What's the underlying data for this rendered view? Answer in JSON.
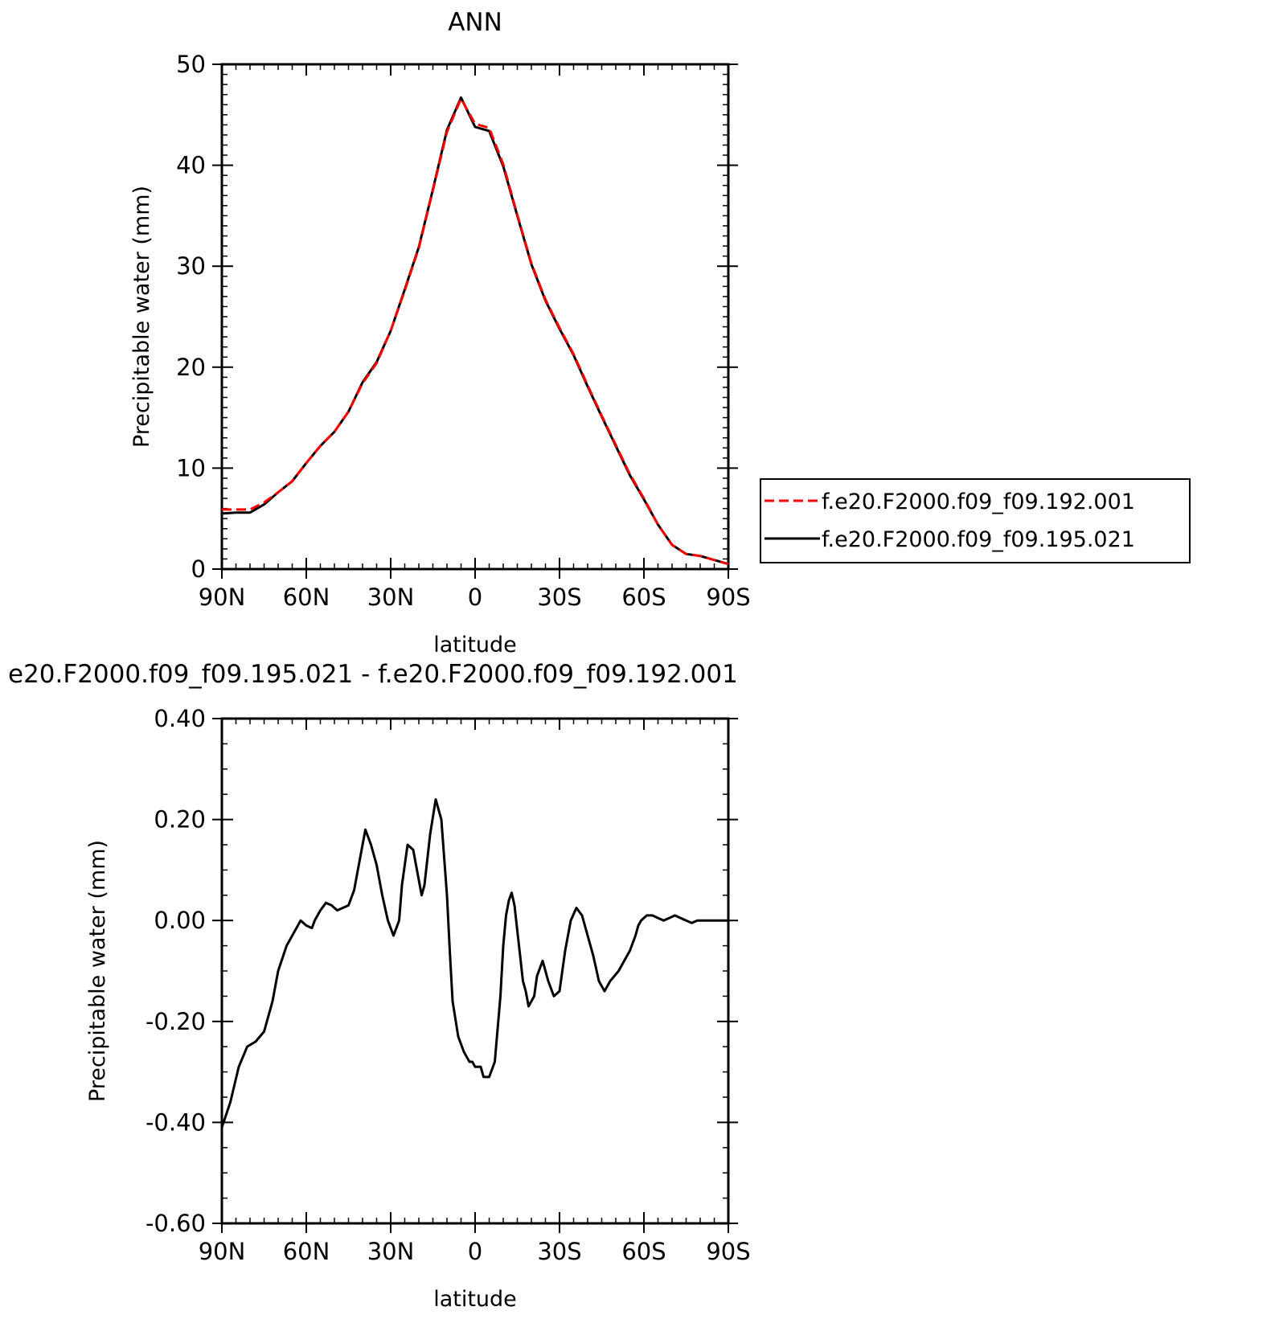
{
  "chart_data": [
    {
      "type": "line",
      "title": "ANN",
      "xlabel": "latitude",
      "ylabel": "Precipitable water (mm)",
      "xlim": [
        90,
        -90
      ],
      "ylim": [
        0,
        50
      ],
      "xticks": [
        {
          "value": 90,
          "label": "90N"
        },
        {
          "value": 60,
          "label": "60N"
        },
        {
          "value": 30,
          "label": "30N"
        },
        {
          "value": 0,
          "label": "0"
        },
        {
          "value": -30,
          "label": "30S"
        },
        {
          "value": -60,
          "label": "60S"
        },
        {
          "value": -90,
          "label": "90S"
        }
      ],
      "yticks": [
        {
          "value": 0,
          "label": "0"
        },
        {
          "value": 10,
          "label": "10"
        },
        {
          "value": 20,
          "label": "20"
        },
        {
          "value": 30,
          "label": "30"
        },
        {
          "value": 40,
          "label": "40"
        },
        {
          "value": 50,
          "label": "50"
        }
      ],
      "x": [
        90,
        85,
        80,
        75,
        70,
        65,
        60,
        55,
        50,
        45,
        40,
        35,
        30,
        25,
        20,
        15,
        10,
        5,
        0,
        -5,
        -10,
        -15,
        -20,
        -25,
        -30,
        -35,
        -40,
        -45,
        -50,
        -55,
        -60,
        -65,
        -70,
        -75,
        -80,
        -85,
        -90
      ],
      "legend_position": "right",
      "series": [
        {
          "name": "f.e20.F2000.f09_f09.192.001",
          "color": "#ff0000",
          "dash": "dashed",
          "values": [
            5.9,
            5.9,
            5.9,
            6.6,
            7.6,
            8.7,
            10.5,
            12.2,
            13.6,
            15.6,
            18.4,
            20.4,
            23.6,
            27.6,
            31.8,
            37.5,
            43.3,
            46.6,
            44.1,
            43.7,
            40.1,
            35.1,
            30.3,
            26.7,
            23.9,
            21.3,
            18.2,
            15.2,
            12.3,
            9.4,
            7.0,
            4.4,
            2.4,
            1.5,
            1.3,
            0.9,
            0.5
          ]
        },
        {
          "name": "f.e20.F2000.f09_f09.195.021",
          "color": "#000000",
          "dash": "solid",
          "values": [
            5.5,
            5.6,
            5.6,
            6.4,
            7.6,
            8.7,
            10.5,
            12.2,
            13.6,
            15.6,
            18.5,
            20.5,
            23.6,
            27.7,
            31.9,
            37.6,
            43.5,
            46.7,
            43.8,
            43.4,
            39.9,
            35.0,
            30.2,
            26.6,
            23.8,
            21.2,
            18.1,
            15.1,
            12.2,
            9.3,
            6.9,
            4.4,
            2.4,
            1.5,
            1.3,
            0.9,
            0.5
          ]
        }
      ]
    },
    {
      "type": "line",
      "title": "e20.F2000.f09_f09.195.021 - f.e20.F2000.f09_f09.192.001",
      "xlabel": "latitude",
      "ylabel": "Precipitable water (mm)",
      "xlim": [
        90,
        -90
      ],
      "ylim": [
        -0.6,
        0.4
      ],
      "xticks": [
        {
          "value": 90,
          "label": "90N"
        },
        {
          "value": 60,
          "label": "60N"
        },
        {
          "value": 30,
          "label": "30N"
        },
        {
          "value": 0,
          "label": "0"
        },
        {
          "value": -30,
          "label": "30S"
        },
        {
          "value": -60,
          "label": "60S"
        },
        {
          "value": -90,
          "label": "90S"
        }
      ],
      "yticks": [
        {
          "value": -0.6,
          "label": "-0.60"
        },
        {
          "value": -0.4,
          "label": "-0.40"
        },
        {
          "value": -0.2,
          "label": "-0.20"
        },
        {
          "value": 0.0,
          "label": "0.00"
        },
        {
          "value": 0.2,
          "label": "0.20"
        },
        {
          "value": 0.4,
          "label": "0.40"
        }
      ],
      "x": [
        90,
        87,
        84,
        81,
        78,
        75,
        72,
        70,
        67,
        64,
        62,
        60,
        58,
        57,
        55,
        53,
        51,
        49,
        47,
        45,
        43,
        41,
        39,
        37,
        35,
        33,
        31,
        29,
        27,
        26,
        24,
        22,
        20,
        19,
        18,
        16,
        14,
        12,
        10,
        9,
        8,
        6,
        4,
        3,
        2,
        1,
        0,
        -2,
        -3,
        -5,
        -7,
        -9,
        -10,
        -11,
        -12,
        -13,
        -14,
        -15,
        -16,
        -17,
        -18,
        -19,
        -21,
        -22,
        -24,
        -26,
        -28,
        -30,
        -32,
        -34,
        -36,
        -38,
        -40,
        -42,
        -44,
        -46,
        -48,
        -51,
        -53,
        -55,
        -57,
        -58,
        -59,
        -61,
        -63,
        -65,
        -67,
        -69,
        -71,
        -73,
        -75,
        -77,
        -79,
        -81,
        -83,
        -85,
        -87,
        -90
      ],
      "series": [
        {
          "name": "",
          "color": "#000000",
          "dash": "solid",
          "values": [
            -0.41,
            -0.36,
            -0.29,
            -0.25,
            -0.24,
            -0.22,
            -0.16,
            -0.1,
            -0.05,
            -0.02,
            0.0,
            -0.01,
            -0.015,
            0.0,
            0.02,
            0.035,
            0.03,
            0.02,
            0.025,
            0.03,
            0.06,
            0.12,
            0.18,
            0.15,
            0.11,
            0.05,
            0.0,
            -0.03,
            0.0,
            0.07,
            0.15,
            0.14,
            0.08,
            0.05,
            0.07,
            0.17,
            0.24,
            0.2,
            0.05,
            -0.06,
            -0.16,
            -0.23,
            -0.26,
            -0.27,
            -0.28,
            -0.28,
            -0.29,
            -0.29,
            -0.31,
            -0.31,
            -0.28,
            -0.15,
            -0.05,
            0.01,
            0.04,
            0.055,
            0.03,
            -0.02,
            -0.07,
            -0.12,
            -0.14,
            -0.17,
            -0.15,
            -0.11,
            -0.08,
            -0.12,
            -0.15,
            -0.14,
            -0.06,
            0.0,
            0.025,
            0.01,
            -0.03,
            -0.07,
            -0.12,
            -0.14,
            -0.12,
            -0.1,
            -0.08,
            -0.06,
            -0.03,
            -0.01,
            0.0,
            0.01,
            0.01,
            0.005,
            0.0,
            0.005,
            0.01,
            0.005,
            0.0,
            -0.005,
            0.0,
            0.0,
            0.0,
            0.0,
            0.0,
            0.0
          ]
        }
      ]
    }
  ]
}
